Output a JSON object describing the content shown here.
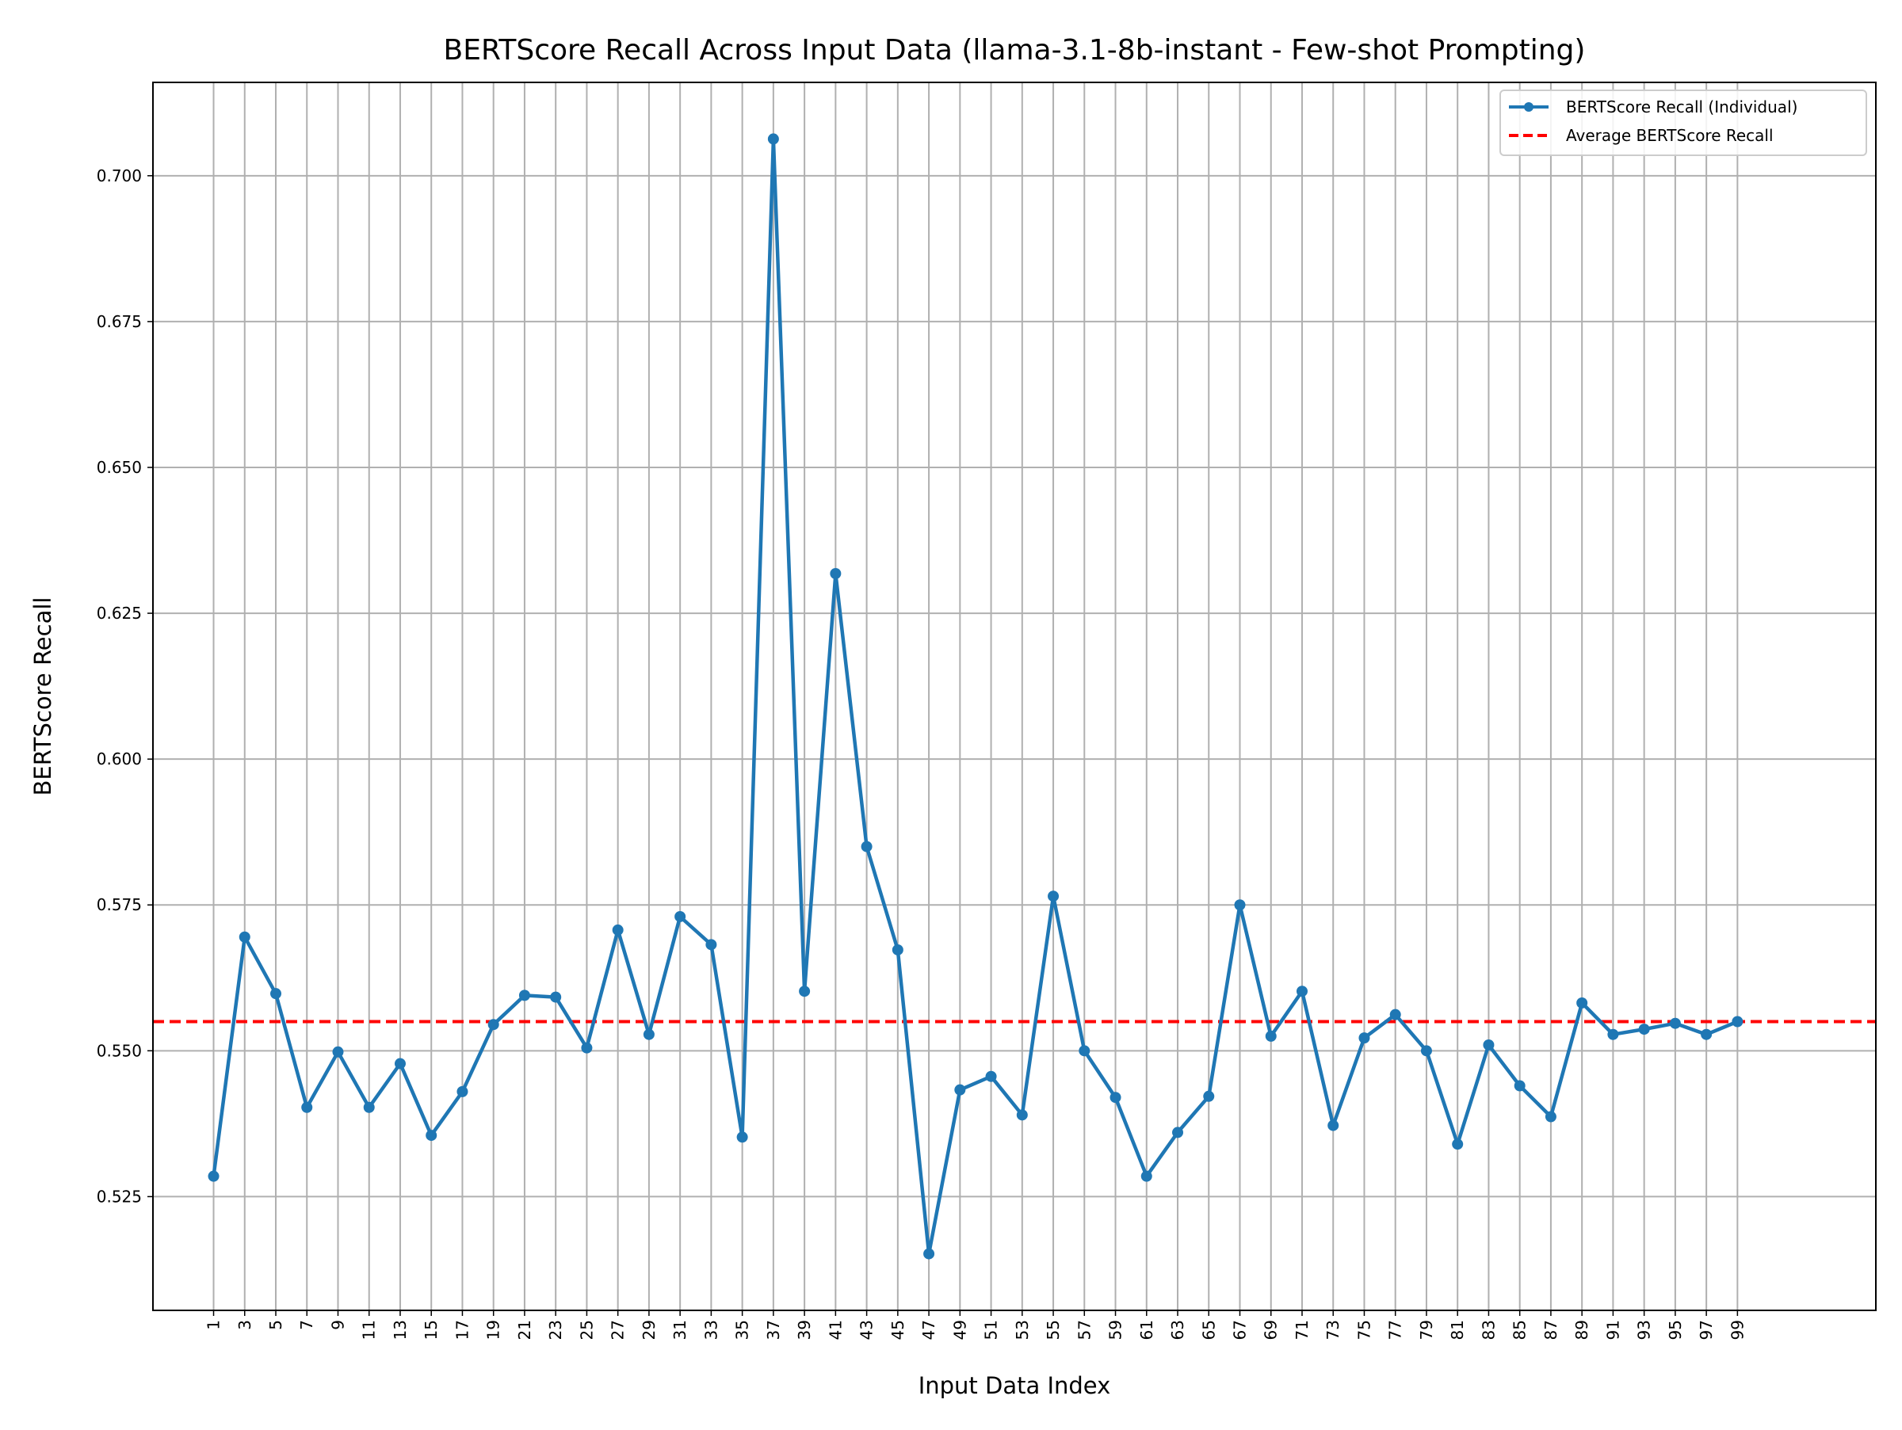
{
  "chart_data": {
    "type": "line",
    "title": "BERTScore Recall Across Input Data (llama-3.1-8b-instant - Few-shot Prompting)",
    "xlabel": "Input Data Index",
    "ylabel": "BERTScore Recall",
    "xlim": [
      -2.9,
      107.9
    ],
    "ylim": [
      0.5055,
      0.716
    ],
    "x_tick_labels": [
      "1",
      "3",
      "5",
      "7",
      "9",
      "11",
      "13",
      "15",
      "17",
      "19",
      "21",
      "23",
      "25",
      "27",
      "29",
      "31",
      "33",
      "35",
      "37",
      "39",
      "41",
      "43",
      "45",
      "47",
      "49",
      "51",
      "53",
      "55",
      "57",
      "59",
      "61",
      "63",
      "65",
      "67",
      "69",
      "71",
      "73",
      "75",
      "77",
      "79",
      "81",
      "83",
      "85",
      "87",
      "89",
      "91",
      "93",
      "95",
      "97",
      "99"
    ],
    "y_ticks": [
      0.525,
      0.55,
      0.575,
      0.6,
      0.625,
      0.65,
      0.675,
      0.7
    ],
    "y_tick_labels": [
      "0.525",
      "0.550",
      "0.575",
      "0.600",
      "0.625",
      "0.650",
      "0.675",
      "0.700"
    ],
    "grid": true,
    "legend_position": "upper right",
    "series": [
      {
        "name": "BERTScore Recall (Individual)",
        "color": "#1f77b4",
        "marker": "circle",
        "x": [
          1,
          3,
          5,
          7,
          9,
          11,
          13,
          15,
          17,
          19,
          21,
          23,
          25,
          27,
          29,
          31,
          33,
          35,
          37,
          39,
          41,
          43,
          45,
          47,
          49,
          51,
          53,
          55,
          57,
          59,
          61,
          63,
          65,
          67,
          69,
          71,
          73,
          75,
          77,
          79,
          81,
          83,
          85,
          87,
          89,
          91,
          93,
          95,
          97,
          99
        ],
        "values": [
          0.5285,
          0.5695,
          0.5598,
          0.5403,
          0.5498,
          0.5403,
          0.5478,
          0.5355,
          0.543,
          0.5545,
          0.5595,
          0.5592,
          0.5505,
          0.5707,
          0.5528,
          0.573,
          0.5682,
          0.5352,
          0.7063,
          0.5602,
          0.6318,
          0.585,
          0.5673,
          0.5152,
          0.5433,
          0.5456,
          0.539,
          0.5765,
          0.55,
          0.542,
          0.5285,
          0.536,
          0.5422,
          0.575,
          0.5525,
          0.5602,
          0.5372,
          0.5522,
          0.5562,
          0.55,
          0.534,
          0.551,
          0.544,
          0.5387,
          0.5582,
          0.5528,
          0.5537,
          0.5547,
          0.5528,
          0.555
        ]
      },
      {
        "name": "Average BERTScore Recall",
        "color": "#ff0000",
        "style": "dashed",
        "value": 0.555
      }
    ]
  }
}
